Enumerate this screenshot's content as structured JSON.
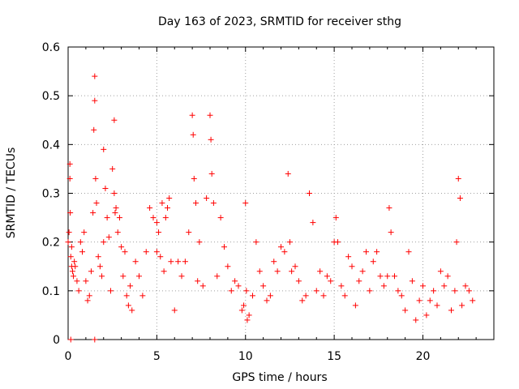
{
  "chart_data": {
    "type": "scatter",
    "title": "Day 163 of 2023, SRMTID for receiver sthg",
    "xlabel": "GPS time / hours",
    "ylabel": "SRMTID / TECUs",
    "xlim": [
      0,
      24
    ],
    "ylim": [
      0,
      0.6
    ],
    "grid": true,
    "marker": "+",
    "color": "#ff0000",
    "x_ticks": [
      0,
      5,
      10,
      15,
      20
    ],
    "y_ticks": [
      0,
      0.1,
      0.2,
      0.3,
      0.4,
      0.5,
      0.6
    ],
    "x_tick_labels": [
      "0",
      "5",
      "10",
      "15",
      "20"
    ],
    "y_tick_labels": [
      "0",
      "0.1",
      "0.2",
      "0.3",
      "0.4",
      "0.5",
      "0.6"
    ],
    "series": [
      {
        "name": "SRMTID",
        "x": [
          0.0,
          0.05,
          0.1,
          0.1,
          0.12,
          0.15,
          0.2,
          0.2,
          0.25,
          0.3,
          0.35,
          0.4,
          0.5,
          0.6,
          0.7,
          0.8,
          0.9,
          1.0,
          1.1,
          1.2,
          1.3,
          1.4,
          1.45,
          1.5,
          1.5,
          1.55,
          1.6,
          1.7,
          1.8,
          1.9,
          2.0,
          2.0,
          2.1,
          2.2,
          2.3,
          2.4,
          2.5,
          2.6,
          2.6,
          2.65,
          2.7,
          2.8,
          2.9,
          3.0,
          3.1,
          3.2,
          3.3,
          3.4,
          3.5,
          3.6,
          3.8,
          4.0,
          4.2,
          4.4,
          4.6,
          4.8,
          5.0,
          5.0,
          5.1,
          5.2,
          5.3,
          5.4,
          5.5,
          5.6,
          5.7,
          5.8,
          6.0,
          6.2,
          6.4,
          6.6,
          6.8,
          7.0,
          7.05,
          7.1,
          7.2,
          7.3,
          7.4,
          7.6,
          7.8,
          8.0,
          8.05,
          8.1,
          8.2,
          8.4,
          8.6,
          8.8,
          9.0,
          9.2,
          9.4,
          9.6,
          9.8,
          9.9,
          10.0,
          10.05,
          10.1,
          10.2,
          10.4,
          10.6,
          10.8,
          11.0,
          11.2,
          11.4,
          11.6,
          11.8,
          12.0,
          12.2,
          12.4,
          12.5,
          12.6,
          12.8,
          13.0,
          13.2,
          13.4,
          13.6,
          13.8,
          14.0,
          14.2,
          14.4,
          14.6,
          14.8,
          15.0,
          15.1,
          15.2,
          15.4,
          15.6,
          15.8,
          16.0,
          16.2,
          16.4,
          16.6,
          16.8,
          17.0,
          17.2,
          17.4,
          17.6,
          17.8,
          18.0,
          18.1,
          18.2,
          18.4,
          18.6,
          18.8,
          19.0,
          19.2,
          19.4,
          19.6,
          19.8,
          20.0,
          20.2,
          20.4,
          20.6,
          20.8,
          21.0,
          21.2,
          21.4,
          21.6,
          21.8,
          21.9,
          22.0,
          22.1,
          22.2,
          22.4,
          22.6,
          22.8,
          1.5,
          0.15
        ],
        "y": [
          0.2,
          0.22,
          0.36,
          0.33,
          0.26,
          0.17,
          0.19,
          0.15,
          0.14,
          0.13,
          0.16,
          0.15,
          0.12,
          0.1,
          0.2,
          0.18,
          0.22,
          0.12,
          0.08,
          0.09,
          0.14,
          0.26,
          0.43,
          0.54,
          0.49,
          0.33,
          0.28,
          0.17,
          0.15,
          0.13,
          0.39,
          0.2,
          0.31,
          0.25,
          0.21,
          0.1,
          0.35,
          0.45,
          0.3,
          0.26,
          0.27,
          0.22,
          0.25,
          0.19,
          0.13,
          0.18,
          0.09,
          0.07,
          0.11,
          0.06,
          0.16,
          0.13,
          0.09,
          0.18,
          0.27,
          0.25,
          0.18,
          0.24,
          0.22,
          0.17,
          0.28,
          0.14,
          0.25,
          0.27,
          0.29,
          0.16,
          0.06,
          0.16,
          0.13,
          0.16,
          0.22,
          0.46,
          0.42,
          0.33,
          0.28,
          0.12,
          0.2,
          0.11,
          0.29,
          0.46,
          0.41,
          0.34,
          0.28,
          0.13,
          0.25,
          0.19,
          0.15,
          0.1,
          0.12,
          0.11,
          0.06,
          0.07,
          0.28,
          0.1,
          0.04,
          0.05,
          0.09,
          0.2,
          0.14,
          0.11,
          0.08,
          0.09,
          0.16,
          0.14,
          0.19,
          0.18,
          0.34,
          0.2,
          0.14,
          0.15,
          0.12,
          0.08,
          0.09,
          0.3,
          0.24,
          0.1,
          0.14,
          0.09,
          0.13,
          0.12,
          0.2,
          0.25,
          0.2,
          0.11,
          0.09,
          0.17,
          0.15,
          0.07,
          0.12,
          0.14,
          0.18,
          0.1,
          0.16,
          0.18,
          0.13,
          0.11,
          0.13,
          0.27,
          0.22,
          0.13,
          0.1,
          0.09,
          0.06,
          0.18,
          0.12,
          0.04,
          0.08,
          0.11,
          0.05,
          0.08,
          0.1,
          0.07,
          0.14,
          0.11,
          0.13,
          0.06,
          0.1,
          0.2,
          0.33,
          0.29,
          0.07,
          0.11,
          0.1,
          0.08,
          0.0,
          0.0
        ]
      }
    ]
  }
}
